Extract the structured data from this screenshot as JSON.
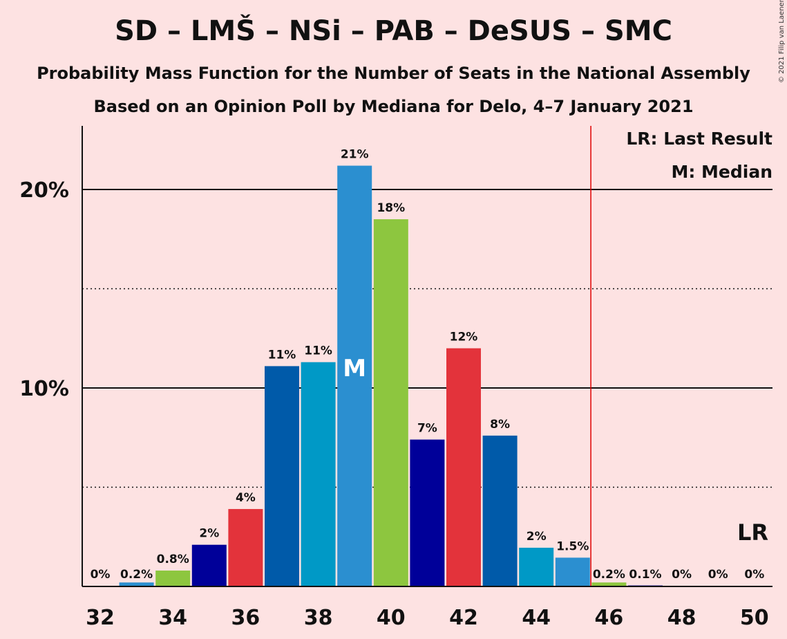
{
  "header": {
    "title": "SD – LMŠ – NSi – PAB – DeSUS – SMC",
    "subtitle": "Probability Mass Function for the Number of Seats in the National Assembly",
    "subtitle2": "Based on an Opinion Poll by Mediana for Delo, 4–7 January 2021",
    "copyright": "© 2021 Filip van Laenen"
  },
  "legend": {
    "last_result": "LR: Last Result",
    "median": "M: Median"
  },
  "markers": {
    "median_label": "M",
    "median_seat": 39,
    "last_result_label": "LR",
    "last_result_seat": 46
  },
  "colors": {
    "background": "#fde2e2",
    "last_result_line": "#e00000"
  },
  "chart_data": {
    "type": "bar",
    "title": "SD – LMŠ – NSi – PAB – DeSUS – SMC",
    "xlabel": "",
    "ylabel": "",
    "ylim": [
      0,
      23
    ],
    "y_ticks": [
      {
        "value": 10,
        "label": "10%"
      },
      {
        "value": 20,
        "label": "20%"
      }
    ],
    "y_dotted_gridlines": [
      5,
      15
    ],
    "x_ticks": [
      32,
      34,
      36,
      38,
      40,
      42,
      44,
      46,
      48,
      50
    ],
    "categories": [
      32,
      33,
      34,
      35,
      36,
      37,
      38,
      39,
      40,
      41,
      42,
      43,
      44,
      45,
      46,
      47,
      48,
      49,
      50
    ],
    "values": [
      0,
      0.2,
      0.8,
      2.1,
      3.9,
      11.1,
      11.3,
      21.2,
      18.5,
      7.4,
      12.0,
      7.6,
      1.95,
      1.45,
      0.2,
      0.05,
      0,
      0,
      0
    ],
    "labels": [
      "0%",
      "0.2%",
      "0.8%",
      "2%",
      "4%",
      "11%",
      "11%",
      "21%",
      "18%",
      "7%",
      "12%",
      "8%",
      "2%",
      "1.5%",
      "0.2%",
      "0.1%",
      "0%",
      "0%",
      "0%"
    ],
    "bar_colors": [
      "#8dc63f",
      "#2b8fd0",
      "#8dc63f",
      "#000099",
      "#e3333b",
      "#005aa9",
      "#0099c6",
      "#2b8fd0",
      "#8dc63f",
      "#000099",
      "#e3333b",
      "#005aa9",
      "#0099c6",
      "#2b8fd0",
      "#8dc63f",
      "#000099",
      "#e3333b",
      "#005aa9",
      "#0099c6"
    ],
    "legend_position": "top-right"
  }
}
